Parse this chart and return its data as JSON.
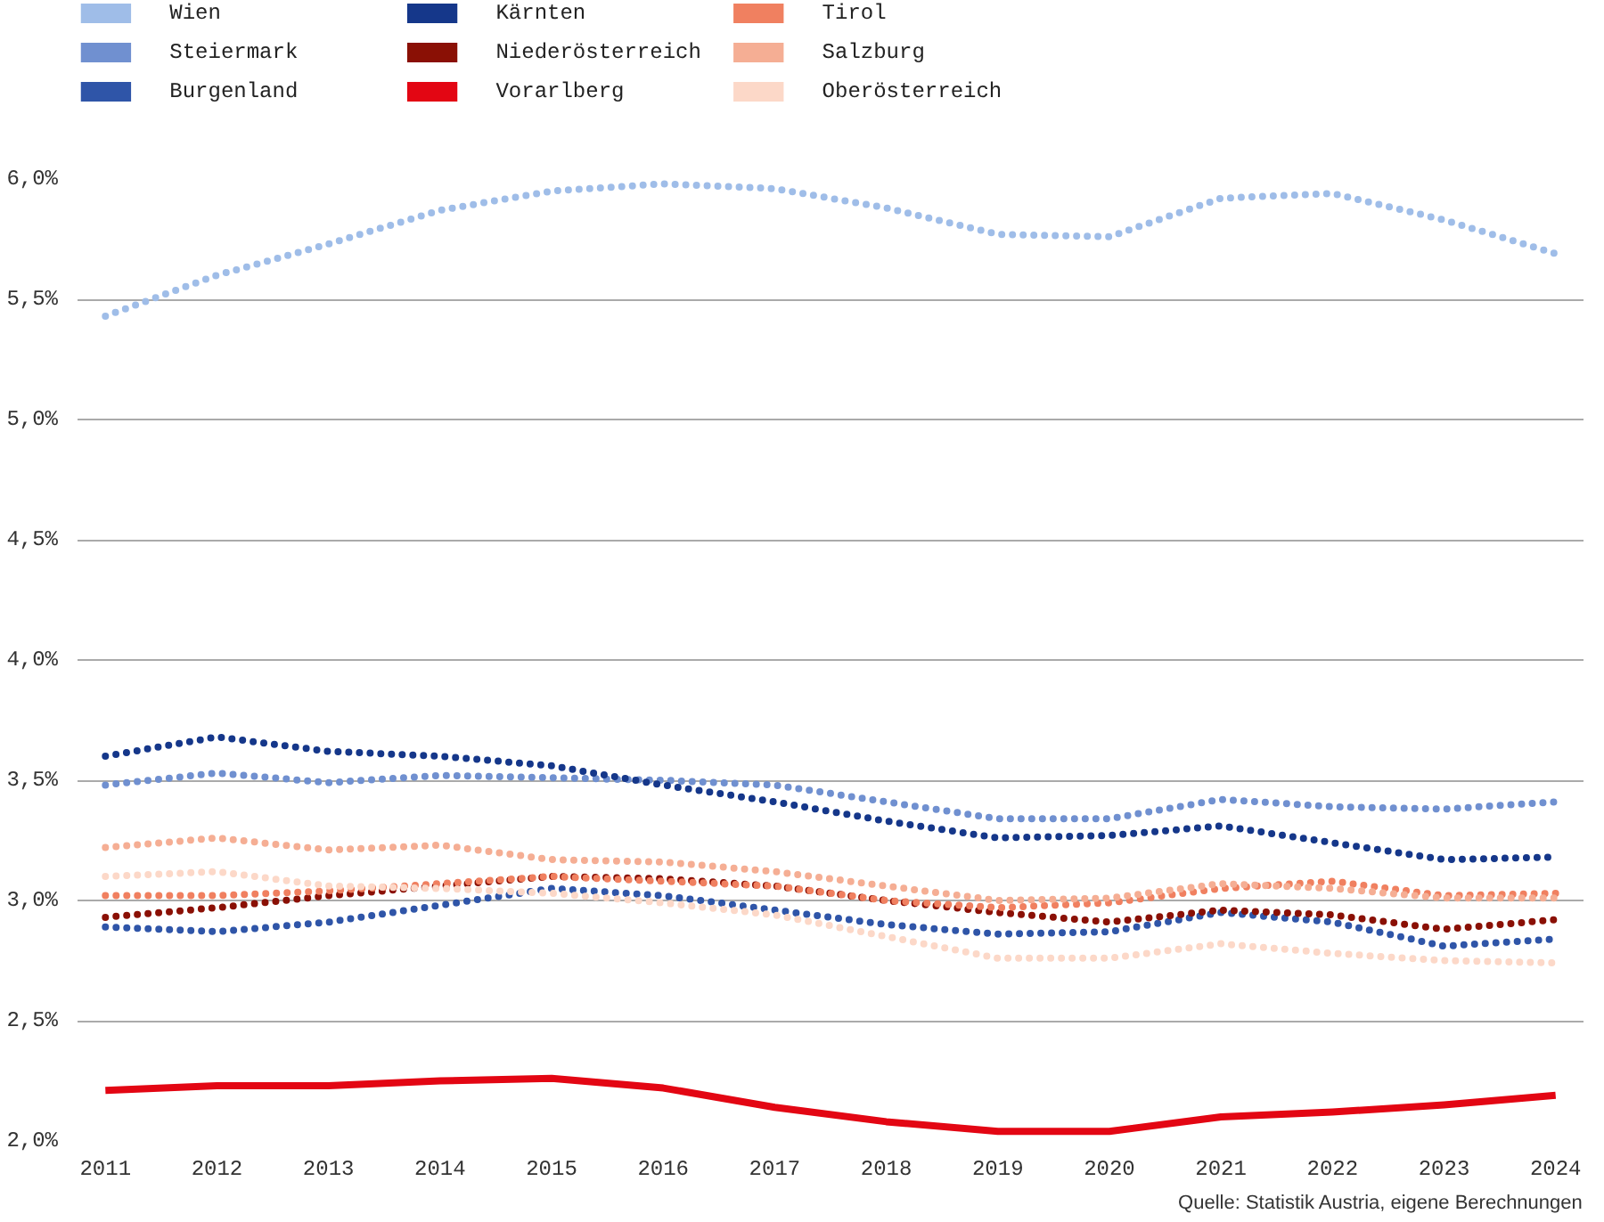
{
  "chart_data": {
    "type": "line",
    "x": [
      2011,
      2012,
      2013,
      2014,
      2015,
      2016,
      2017,
      2018,
      2019,
      2020,
      2021,
      2022,
      2023,
      2024
    ],
    "xlim": [
      2010.75,
      2024.25
    ],
    "xticks": [
      2011,
      2012,
      2013,
      2014,
      2015,
      2016,
      2017,
      2018,
      2019,
      2020,
      2021,
      2022,
      2023,
      2024
    ],
    "ylim": [
      2.0,
      6.0
    ],
    "yticks": [
      {
        "value": 2.0,
        "label": "2,0%"
      },
      {
        "value": 2.5,
        "label": "2,5%"
      },
      {
        "value": 3.0,
        "label": "3,0%"
      },
      {
        "value": 3.5,
        "label": "3,5%"
      },
      {
        "value": 4.0,
        "label": "4,0%"
      },
      {
        "value": 4.5,
        "label": "4,5%"
      },
      {
        "value": 5.0,
        "label": "5,0%"
      },
      {
        "value": 5.5,
        "label": "5,5%"
      },
      {
        "value": 6.0,
        "label": "6,0%"
      }
    ],
    "grid": "y",
    "legend": "top",
    "marker": "none",
    "series": [
      {
        "name": "Wien",
        "color": "#9fbde8",
        "line_style": "dotted",
        "values": [
          5.43,
          5.6,
          5.73,
          5.87,
          5.95,
          5.98,
          5.96,
          5.88,
          5.77,
          5.76,
          5.92,
          5.94,
          5.83,
          5.69
        ]
      },
      {
        "name": "Steiermark",
        "color": "#7090d0",
        "line_style": "dotted",
        "values": [
          3.48,
          3.53,
          3.49,
          3.52,
          3.51,
          3.5,
          3.48,
          3.41,
          3.34,
          3.34,
          3.42,
          3.39,
          3.38,
          3.41
        ]
      },
      {
        "name": "Burgenland",
        "color": "#2f55a8",
        "line_style": "dotted",
        "values": [
          2.89,
          2.87,
          2.91,
          2.98,
          3.05,
          3.02,
          2.96,
          2.9,
          2.86,
          2.87,
          2.95,
          2.91,
          2.81,
          2.84
        ]
      },
      {
        "name": "Kärnten",
        "color": "#15378a",
        "line_style": "dotted",
        "values": [
          3.6,
          3.68,
          3.62,
          3.6,
          3.56,
          3.48,
          3.41,
          3.33,
          3.26,
          3.27,
          3.31,
          3.24,
          3.17,
          3.18
        ]
      },
      {
        "name": "Niederösterreich",
        "color": "#8a1005",
        "line_style": "dotted",
        "values": [
          2.93,
          2.97,
          3.02,
          3.06,
          3.1,
          3.09,
          3.06,
          3.0,
          2.95,
          2.91,
          2.96,
          2.94,
          2.88,
          2.92
        ]
      },
      {
        "name": "Vorarlberg",
        "color": "#e30613",
        "line_style": "solid",
        "values": [
          2.21,
          2.23,
          2.23,
          2.25,
          2.26,
          2.22,
          2.14,
          2.08,
          2.04,
          2.04,
          2.1,
          2.12,
          2.15,
          2.19
        ]
      },
      {
        "name": "Tirol",
        "color": "#f08060",
        "line_style": "dotted",
        "values": [
          3.02,
          3.02,
          3.04,
          3.07,
          3.1,
          3.08,
          3.06,
          3.0,
          2.97,
          2.99,
          3.05,
          3.08,
          3.02,
          3.03
        ]
      },
      {
        "name": "Salzburg",
        "color": "#f5ae94",
        "line_style": "dotted",
        "values": [
          3.22,
          3.26,
          3.21,
          3.23,
          3.17,
          3.16,
          3.12,
          3.06,
          3.0,
          3.01,
          3.07,
          3.05,
          3.01,
          3.01
        ]
      },
      {
        "name": "Oberösterreich",
        "color": "#fcd8c8",
        "line_style": "dotted",
        "values": [
          3.1,
          3.12,
          3.06,
          3.05,
          3.03,
          2.99,
          2.94,
          2.85,
          2.76,
          2.76,
          2.82,
          2.78,
          2.75,
          2.74
        ]
      }
    ],
    "annotations": [
      "Quelle: Statistik Austria, eigene Berechnungen"
    ]
  }
}
